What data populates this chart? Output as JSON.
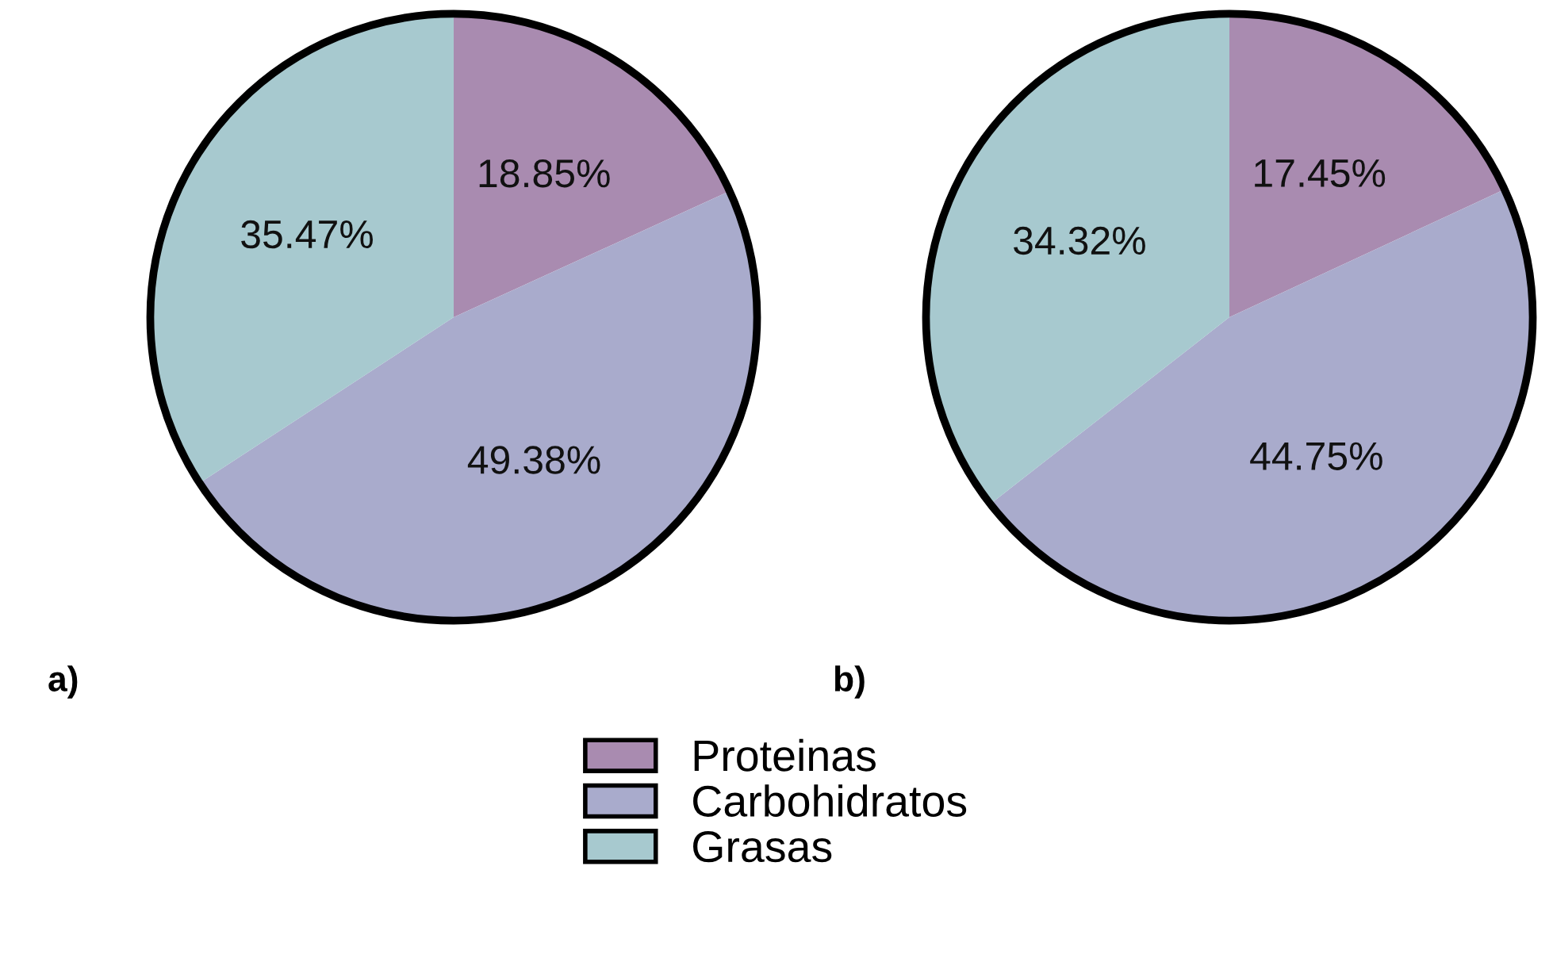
{
  "chart_data": [
    {
      "type": "pie",
      "title": "a)",
      "categories": [
        "Proteinas",
        "Carbohidratos",
        "Grasas"
      ],
      "values": [
        18.85,
        49.38,
        35.47
      ],
      "value_labels": [
        "18.85%",
        "49.38%",
        "35.47%"
      ],
      "colors": [
        "#a98bb0",
        "#a9abcc",
        "#a7c9cf"
      ],
      "legend": "bottom"
    },
    {
      "type": "pie",
      "title": "b)",
      "categories": [
        null,
        null,
        null
      ],
      "values": [
        17.45,
        44.75,
        34.32
      ],
      "value_labels": [
        "17.45%",
        "44.75%",
        "34.32%"
      ],
      "colors": [
        "#a98bb0",
        "#a9abcc",
        "#a7c9cf"
      ]
    }
  ]
}
